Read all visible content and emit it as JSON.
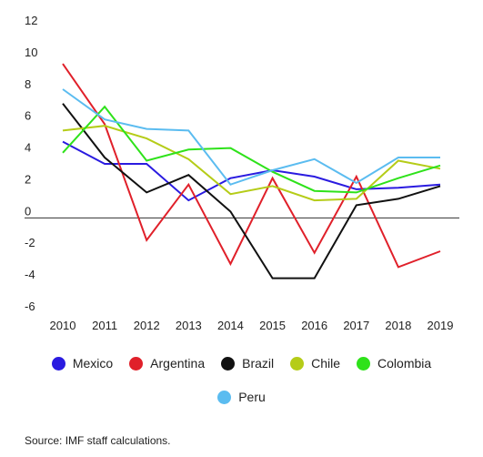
{
  "chart_data": {
    "type": "line",
    "title": "",
    "xlabel": "",
    "ylabel": "",
    "categories": [
      "2010",
      "2011",
      "2012",
      "2013",
      "2014",
      "2015",
      "2016",
      "2017",
      "2018",
      "2019"
    ],
    "ylim": [
      -6,
      12
    ],
    "yticks": [
      12,
      10,
      8,
      6,
      4,
      2,
      0,
      -2,
      -4,
      -6
    ],
    "grid": false,
    "zero_line": true,
    "legend_position": "bottom",
    "series": [
      {
        "name": "Mexico",
        "color": "#2a1be0",
        "values": [
          4.8,
          3.4,
          3.4,
          1.1,
          2.5,
          3.0,
          2.6,
          1.8,
          1.9,
          2.1
        ]
      },
      {
        "name": "Argentina",
        "color": "#e0202a",
        "values": [
          9.7,
          5.9,
          -1.4,
          2.1,
          -2.9,
          2.5,
          -2.2,
          2.6,
          -3.1,
          -2.1
        ]
      },
      {
        "name": "Brazil",
        "color": "#111111",
        "values": [
          7.2,
          3.8,
          1.6,
          2.7,
          0.4,
          -3.8,
          -3.8,
          0.8,
          1.2,
          2.0
        ]
      },
      {
        "name": "Chile",
        "color": "#b5cc18",
        "values": [
          5.5,
          5.8,
          5.0,
          3.7,
          1.5,
          2.0,
          1.1,
          1.2,
          3.6,
          3.1
        ]
      },
      {
        "name": "Colombia",
        "color": "#2ee21a",
        "values": [
          4.1,
          7.0,
          3.6,
          4.3,
          4.4,
          2.9,
          1.7,
          1.6,
          2.5,
          3.3
        ]
      },
      {
        "name": "Peru",
        "color": "#5bbcf0",
        "values": [
          8.1,
          6.2,
          5.6,
          5.5,
          2.1,
          3.0,
          3.7,
          2.2,
          3.8,
          3.8
        ]
      }
    ]
  },
  "source": "Source: IMF staff calculations."
}
